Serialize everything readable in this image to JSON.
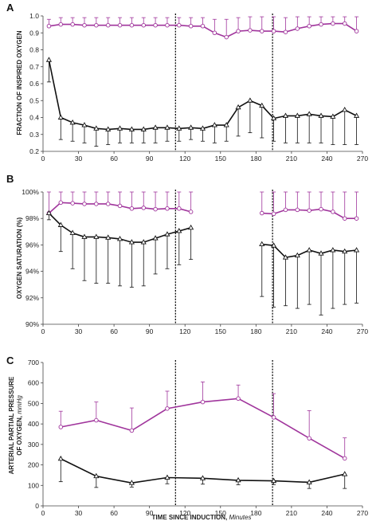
{
  "chart_data": [
    {
      "panel": "A",
      "type": "line",
      "ylabel": "FRACTION OF INSPIRED OXYGEN",
      "xlim": [
        0,
        270
      ],
      "xticks": [
        0,
        30,
        60,
        90,
        120,
        150,
        180,
        210,
        240,
        270
      ],
      "ylim": [
        0.2,
        1.0
      ],
      "yticks": [
        0.2,
        0.3,
        0.4,
        0.5,
        0.6,
        0.7,
        0.8,
        0.9,
        1.0
      ],
      "ytick_labels": [
        "0.2",
        "0.3",
        "0.4",
        "0.5",
        "0.6",
        "0.7",
        "0.8",
        "0.9",
        "1.0"
      ],
      "vlines": [
        112,
        194
      ],
      "series": [
        {
          "color": "#a0359c",
          "marker": "circle",
          "error_dir": "up",
          "segments": [
            [
              [
                5,
                0.94,
                0.98
              ],
              [
                15,
                0.95,
                0.99
              ],
              [
                25,
                0.95,
                0.99
              ],
              [
                35,
                0.945,
                0.99
              ],
              [
                45,
                0.945,
                0.99
              ],
              [
                55,
                0.945,
                0.99
              ],
              [
                65,
                0.945,
                0.99
              ],
              [
                75,
                0.945,
                0.99
              ],
              [
                85,
                0.945,
                0.99
              ],
              [
                95,
                0.945,
                0.99
              ],
              [
                105,
                0.945,
                0.99
              ],
              [
                115,
                0.945,
                0.99
              ],
              [
                125,
                0.94,
                0.99
              ],
              [
                135,
                0.94,
                0.99
              ],
              [
                145,
                0.9,
                0.98
              ],
              [
                155,
                0.875,
                0.98
              ],
              [
                165,
                0.91,
                0.99
              ],
              [
                175,
                0.915,
                0.995
              ],
              [
                185,
                0.91,
                0.995
              ],
              [
                195,
                0.91,
                0.995
              ],
              [
                205,
                0.905,
                0.99
              ],
              [
                215,
                0.925,
                0.995
              ],
              [
                225,
                0.94,
                0.995
              ],
              [
                235,
                0.95,
                0.995
              ],
              [
                245,
                0.955,
                0.995
              ],
              [
                255,
                0.955,
                0.995
              ],
              [
                265,
                0.91,
                0.995
              ]
            ]
          ]
        },
        {
          "color": "#111111",
          "marker": "triangle",
          "error_dir": "down",
          "segments": [
            [
              [
                5,
                0.74,
                0.61
              ],
              [
                15,
                0.4,
                0.27
              ],
              [
                25,
                0.37,
                0.26
              ],
              [
                35,
                0.355,
                0.25
              ],
              [
                45,
                0.335,
                0.23
              ],
              [
                55,
                0.33,
                0.24
              ],
              [
                65,
                0.335,
                0.25
              ],
              [
                75,
                0.33,
                0.25
              ],
              [
                85,
                0.33,
                0.25
              ],
              [
                95,
                0.34,
                0.25
              ],
              [
                105,
                0.34,
                0.26
              ],
              [
                115,
                0.335,
                0.26
              ],
              [
                125,
                0.34,
                0.27
              ],
              [
                135,
                0.335,
                0.26
              ],
              [
                145,
                0.355,
                0.25
              ],
              [
                155,
                0.355,
                0.26
              ],
              [
                165,
                0.46,
                0.29
              ],
              [
                175,
                0.5,
                0.31
              ],
              [
                185,
                0.47,
                0.28
              ],
              [
                195,
                0.395,
                0.26
              ],
              [
                205,
                0.41,
                0.25
              ],
              [
                215,
                0.41,
                0.25
              ],
              [
                225,
                0.42,
                0.25
              ],
              [
                235,
                0.41,
                0.25
              ],
              [
                245,
                0.405,
                0.24
              ],
              [
                255,
                0.445,
                0.24
              ],
              [
                265,
                0.41,
                0.24
              ]
            ]
          ]
        }
      ]
    },
    {
      "panel": "B",
      "type": "line",
      "ylabel": "OXYGEN SATURATION (%)",
      "xlim": [
        0,
        270
      ],
      "xticks": [
        0,
        30,
        60,
        90,
        120,
        150,
        180,
        210,
        240,
        270
      ],
      "ylim": [
        90,
        100
      ],
      "yticks": [
        90,
        92,
        94,
        96,
        98,
        100
      ],
      "ytick_labels": [
        "90%",
        "92%",
        "94%",
        "96%",
        "98%",
        "100%"
      ],
      "vlines": [
        112,
        194
      ],
      "series": [
        {
          "color": "#a0359c",
          "marker": "circle",
          "error_dir": "up",
          "segments": [
            [
              [
                5,
                98.4,
                100
              ],
              [
                15,
                99.2,
                100
              ],
              [
                25,
                99.15,
                100
              ],
              [
                35,
                99.1,
                100
              ],
              [
                45,
                99.1,
                100
              ],
              [
                55,
                99.1,
                100
              ],
              [
                65,
                98.95,
                100
              ],
              [
                75,
                98.75,
                100
              ],
              [
                85,
                98.8,
                100
              ],
              [
                95,
                98.7,
                100
              ],
              [
                105,
                98.75,
                100
              ],
              [
                115,
                98.75,
                100
              ],
              [
                125,
                98.5,
                100
              ]
            ],
            [
              [
                185,
                98.4,
                100
              ],
              [
                195,
                98.35,
                100
              ],
              [
                205,
                98.65,
                100
              ],
              [
                215,
                98.65,
                100
              ],
              [
                225,
                98.6,
                100
              ],
              [
                235,
                98.7,
                100
              ],
              [
                245,
                98.5,
                100
              ],
              [
                255,
                98.0,
                100
              ],
              [
                265,
                98.0,
                100
              ]
            ]
          ]
        },
        {
          "color": "#111111",
          "marker": "triangle",
          "error_dir": "down",
          "segments": [
            [
              [
                5,
                98.4,
                97.9
              ],
              [
                15,
                97.5,
                95.5
              ],
              [
                25,
                96.9,
                94.2
              ],
              [
                35,
                96.6,
                93.3
              ],
              [
                45,
                96.6,
                93.1
              ],
              [
                55,
                96.55,
                93.1
              ],
              [
                65,
                96.45,
                92.9
              ],
              [
                75,
                96.2,
                92.8
              ],
              [
                85,
                96.2,
                92.9
              ],
              [
                95,
                96.5,
                93.8
              ],
              [
                105,
                96.8,
                94.2
              ],
              [
                115,
                97.05,
                94.5
              ],
              [
                125,
                97.3,
                94.9
              ]
            ],
            [
              [
                185,
                96.05,
                92.1
              ],
              [
                195,
                95.95,
                91.3
              ],
              [
                205,
                95.05,
                91.4
              ],
              [
                215,
                95.2,
                91.2
              ],
              [
                225,
                95.6,
                91.5
              ],
              [
                235,
                95.35,
                90.7
              ],
              [
                245,
                95.6,
                91.2
              ],
              [
                255,
                95.5,
                91.5
              ],
              [
                265,
                95.6,
                91.6
              ]
            ]
          ]
        }
      ]
    },
    {
      "panel": "C",
      "type": "line",
      "ylabel_lines": [
        "ARTERIAL PARTIAL PRESSURE",
        "OF OXYGEN, mmHg"
      ],
      "xlabel": "TIME SINCE INDUCTION, Minutes",
      "xlim": [
        0,
        270
      ],
      "xticks": [
        0,
        30,
        60,
        90,
        120,
        150,
        180,
        210,
        240,
        270
      ],
      "ylim": [
        0,
        700
      ],
      "yticks": [
        0,
        100,
        200,
        300,
        400,
        500,
        600,
        700
      ],
      "ytick_labels": [
        "0",
        "100",
        "200",
        "300",
        "400",
        "500",
        "600",
        "700"
      ],
      "vlines": [
        112,
        194
      ],
      "series": [
        {
          "color": "#a0359c",
          "marker": "circle",
          "error_dir": "up",
          "segments": [
            [
              [
                15,
                385,
                462
              ],
              [
                45,
                418,
                507
              ],
              [
                75,
                368,
                478
              ],
              [
                105,
                475,
                560
              ],
              [
                135,
                507,
                605
              ],
              [
                165,
                524,
                590
              ],
              [
                195,
                432,
                548
              ],
              [
                225,
                330,
                465
              ],
              [
                255,
                232,
                332
              ]
            ]
          ]
        },
        {
          "color": "#111111",
          "marker": "triangle",
          "error_dir": "down",
          "segments": [
            [
              [
                15,
                230,
                118
              ],
              [
                45,
                145,
                90
              ],
              [
                75,
                112,
                92
              ],
              [
                105,
                138,
                108
              ],
              [
                135,
                135,
                106
              ],
              [
                165,
                125,
                103
              ],
              [
                195,
                122,
                104
              ],
              [
                225,
                115,
                85
              ],
              [
                255,
                155,
                85
              ]
            ]
          ]
        }
      ]
    }
  ]
}
